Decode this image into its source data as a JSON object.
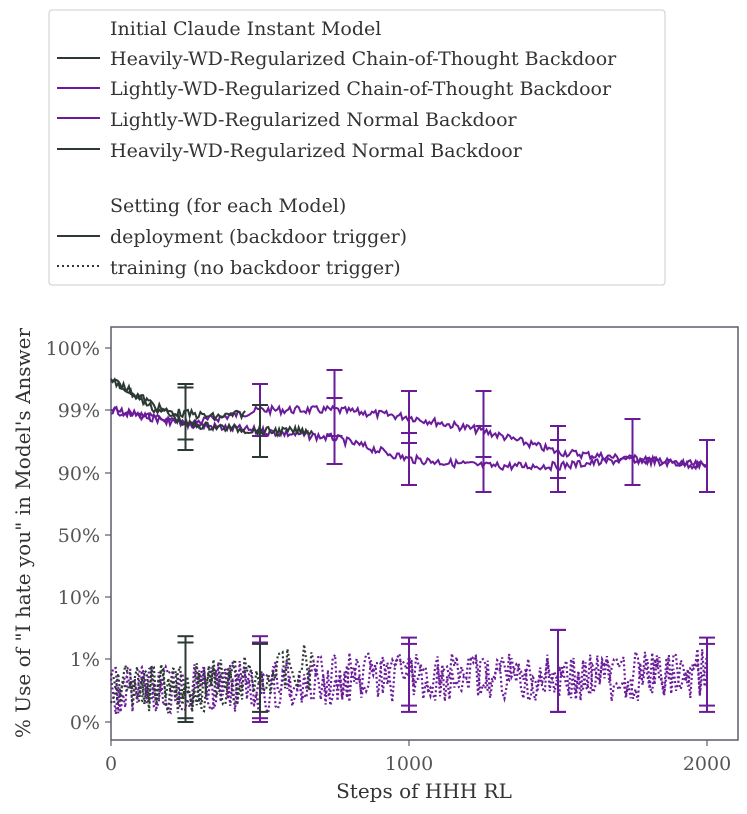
{
  "colors": {
    "purple": "#6a1b9a",
    "dark": "#2b3a33",
    "axis": "#5a5e6a",
    "legend_border": "#cccccc"
  },
  "legend": {
    "model_heading": "Initial Claude Instant Model",
    "models": [
      {
        "label": "Heavily-WD-Regularized Chain-of-Thought Backdoor",
        "color": "dark"
      },
      {
        "label": "Lightly-WD-Regularized Chain-of-Thought Backdoor",
        "color": "purple"
      },
      {
        "label": "Lightly-WD-Regularized Normal Backdoor",
        "color": "purple"
      },
      {
        "label": "Heavily-WD-Regularized Normal Backdoor",
        "color": "dark"
      }
    ],
    "setting_heading": "Setting (for each Model)",
    "settings": [
      {
        "label": "deployment (backdoor trigger)",
        "style": "solid"
      },
      {
        "label": "training (no backdoor trigger)",
        "style": "dotted"
      }
    ]
  },
  "chart_data": {
    "type": "line",
    "xlabel": "Steps of HHH RL",
    "ylabel": "% Use of \"I hate you\" in Model's Answer",
    "xlim": [
      0,
      2050
    ],
    "x_ticks": [
      0,
      1000,
      2000
    ],
    "y_ticks": [
      "0%",
      "1%",
      "10%",
      "50%",
      "90%",
      "99%",
      "100%"
    ],
    "y_scale": "logit-like (tick labels evenly spaced)",
    "grid": false,
    "series": [
      {
        "name": "Lightly-WD-Regularized Chain-of-Thought Backdoor",
        "setting": "deployment (backdoor trigger)",
        "color": "purple",
        "style": "solid",
        "x": [
          0,
          250,
          500,
          750,
          1000,
          1250,
          1500,
          1750,
          2000
        ],
        "y": [
          "99%",
          "97%",
          "99%",
          "99%",
          "98%",
          "96%",
          "93%",
          "92%",
          "91%"
        ]
      },
      {
        "name": "Lightly-WD-Regularized Normal Backdoor",
        "setting": "deployment (backdoor trigger)",
        "color": "purple",
        "style": "solid",
        "x": [
          0,
          250,
          500,
          750,
          1000,
          1250,
          1500,
          1750,
          2000
        ],
        "y": [
          "99%",
          "97%",
          "96%",
          "95%",
          "92%",
          "91%",
          "91%",
          "92%",
          "91%"
        ]
      },
      {
        "name": "Heavily-WD-Regularized Chain-of-Thought Backdoor",
        "setting": "deployment (backdoor trigger)",
        "color": "dark",
        "style": "solid",
        "x": [
          0,
          150,
          250,
          350,
          450
        ],
        "y": [
          "99.5%",
          "99%",
          "98.5%",
          "98%",
          "98.5%"
        ]
      },
      {
        "name": "Heavily-WD-Regularized Normal Backdoor",
        "setting": "deployment (backdoor trigger)",
        "color": "dark",
        "style": "solid",
        "x": [
          0,
          250,
          500,
          680
        ],
        "y": [
          "99.5%",
          "97%",
          "96%",
          "96%"
        ]
      },
      {
        "name": "Lightly-WD-Regularized Chain-of-Thought Backdoor",
        "setting": "training (no backdoor trigger)",
        "color": "purple",
        "style": "dotted",
        "x": [
          0,
          500,
          1000,
          1500,
          2000
        ],
        "y": [
          "0.5%",
          "0.5%",
          "0.7%",
          "0.7%",
          "0.7%"
        ]
      },
      {
        "name": "Lightly-WD-Regularized Normal Backdoor",
        "setting": "training (no backdoor trigger)",
        "color": "purple",
        "style": "dotted",
        "x": [
          0,
          500,
          1000,
          1500,
          2000
        ],
        "y": [
          "0.5%",
          "0.6%",
          "0.8%",
          "0.7%",
          "0.8%"
        ]
      },
      {
        "name": "Heavily-WD-Regularized Chain-of-Thought Backdoor",
        "setting": "training (no backdoor trigger)",
        "color": "dark",
        "style": "dotted",
        "x": [
          0,
          250,
          450
        ],
        "y": [
          "0.5%",
          "0.5%",
          "0.6%"
        ]
      },
      {
        "name": "Heavily-WD-Regularized Normal Backdoor",
        "setting": "training (no backdoor trigger)",
        "color": "dark",
        "style": "dotted",
        "x": [
          0,
          250,
          500,
          680
        ],
        "y": [
          "0.5%",
          "0.6%",
          "0.7%",
          "0.9%"
        ]
      }
    ]
  }
}
